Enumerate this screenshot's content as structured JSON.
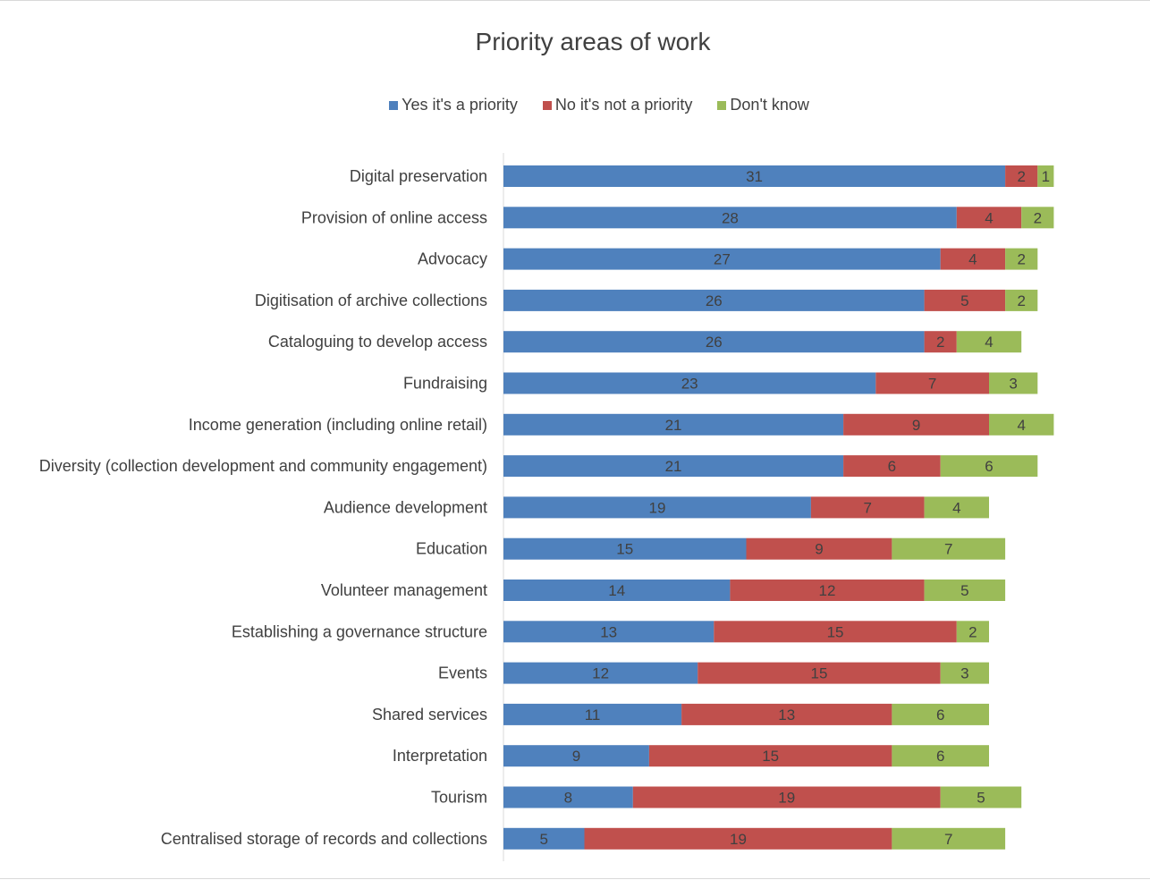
{
  "chart_data": {
    "type": "bar",
    "orientation": "horizontal",
    "stacked": true,
    "title": "Priority areas of work",
    "xlabel": "",
    "ylabel": "",
    "xlim": [
      0,
      34
    ],
    "grid": false,
    "legend_position": "top",
    "categories": [
      "Digital preservation",
      "Provision of online access",
      "Advocacy",
      "Digitisation of archive collections",
      "Cataloguing to develop access",
      "Fundraising",
      "Income generation (including online retail)",
      "Diversity (collection development and community engagement)",
      "Audience development",
      "Education",
      "Volunteer management",
      "Establishing a governance structure",
      "Events",
      "Shared services",
      "Interpretation",
      "Tourism",
      "Centralised storage of records and collections"
    ],
    "series": [
      {
        "name": "Yes it's a priority",
        "color": "#4f81bd",
        "values": [
          31,
          28,
          27,
          26,
          26,
          23,
          21,
          21,
          19,
          15,
          14,
          13,
          12,
          11,
          9,
          8,
          5
        ]
      },
      {
        "name": "No it's not a priority",
        "color": "#c0504d",
        "values": [
          2,
          4,
          4,
          5,
          2,
          7,
          9,
          6,
          7,
          9,
          12,
          15,
          15,
          13,
          15,
          19,
          19
        ]
      },
      {
        "name": "Don't know",
        "color": "#9bbb59",
        "values": [
          1,
          2,
          2,
          2,
          4,
          3,
          4,
          6,
          4,
          7,
          5,
          2,
          3,
          6,
          6,
          5,
          7
        ]
      }
    ]
  }
}
